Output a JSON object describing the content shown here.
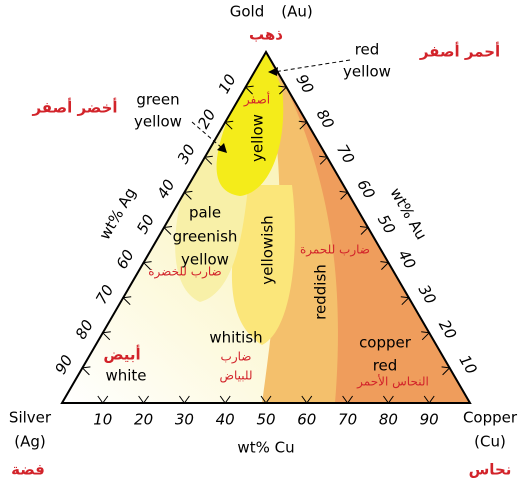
{
  "vertices": {
    "top": {
      "label": "Gold",
      "symbol": "(Au)",
      "arabic": "ذهب"
    },
    "left": {
      "label": "Silver",
      "symbol": "(Ag)",
      "arabic": "فضة"
    },
    "right": {
      "label": "Copper",
      "symbol": "(Cu)",
      "arabic": "نحاس"
    }
  },
  "axes": {
    "bottom": {
      "label": "wt% Cu",
      "ticks": [
        10,
        20,
        30,
        40,
        50,
        60,
        70,
        80,
        90
      ]
    },
    "left": {
      "label": "wt% Ag",
      "ticks": [
        10,
        20,
        30,
        40,
        50,
        60,
        70,
        80,
        90
      ]
    },
    "right": {
      "label": "wt% Au",
      "ticks": [
        90,
        80,
        70,
        60,
        50,
        40,
        30,
        20,
        10
      ]
    }
  },
  "regions": [
    {
      "lines": [
        "red",
        "yellow"
      ],
      "arabic": [
        "أحمر أصفر"
      ]
    },
    {
      "lines": [
        "green",
        "yellow"
      ],
      "arabic": [
        "أخضر أصفر"
      ]
    },
    {
      "lines": [
        "yellow"
      ],
      "arabic": [
        "أصفر"
      ]
    },
    {
      "lines": [
        "pale",
        "greenish",
        "yellow"
      ],
      "arabic": [
        "ضارب للخضرة"
      ]
    },
    {
      "lines": [
        "yellowish"
      ]
    },
    {
      "lines": [
        "reddish"
      ],
      "arabic": [
        "ضارب للحمرة"
      ]
    },
    {
      "lines": [
        "whitish"
      ],
      "arabic": [
        "ضارب",
        "للبياض"
      ]
    },
    {
      "lines": [
        "white"
      ],
      "arabic": [
        "أبيض"
      ]
    },
    {
      "lines": [
        "copper",
        "red"
      ],
      "arabic": [
        "النحاس الأحمر"
      ]
    }
  ]
}
